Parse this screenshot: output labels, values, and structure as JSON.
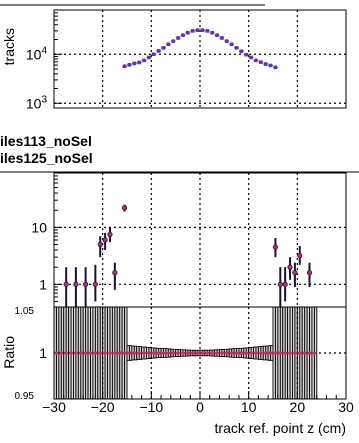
{
  "legend": {
    "entries": [
      "iles113_noSel",
      "iles125_noSel"
    ]
  },
  "chart_data": [
    {
      "type": "scatter",
      "panel": "top",
      "ylabel": "tracks",
      "yscale": "log",
      "ylim": [
        800,
        80000
      ],
      "xlim": [
        -30,
        30
      ],
      "y_ticks": [
        {
          "value": 1000,
          "label": "10",
          "exp": "3"
        },
        {
          "value": 10000,
          "label": "10",
          "exp": "4"
        }
      ],
      "grid": true,
      "series": [
        {
          "color": "#5a3aa8",
          "x": [
            -15.5,
            -14.5,
            -13.5,
            -12.5,
            -11.5,
            -10.5,
            -9.5,
            -8.5,
            -7.5,
            -6.5,
            -5.5,
            -4.5,
            -3.5,
            -2.5,
            -1.5,
            -0.5,
            0.5,
            1.5,
            2.5,
            3.5,
            4.5,
            5.5,
            6.5,
            7.5,
            8.5,
            9.5,
            10.5,
            11.5,
            12.5,
            13.5,
            14.5,
            15.5
          ],
          "y": [
            5700,
            6100,
            6500,
            6800,
            7500,
            8600,
            10000,
            11700,
            13500,
            16000,
            18500,
            21500,
            24500,
            27500,
            30000,
            31000,
            31000,
            30000,
            27500,
            24500,
            21500,
            18500,
            16000,
            13500,
            11500,
            9800,
            8600,
            7500,
            6900,
            6300,
            5900,
            5400
          ]
        }
      ]
    },
    {
      "type": "scatter",
      "panel": "middle",
      "yscale": "log",
      "ylim": [
        0.4,
        90
      ],
      "xlim": [
        -30,
        30
      ],
      "y_ticks": [
        {
          "value": 1,
          "label": "1"
        },
        {
          "value": 10,
          "label": "10"
        }
      ],
      "grid": true,
      "points": [
        {
          "x": -27.5,
          "y": 1.0,
          "err_lo": 0.6,
          "err_hi": 1.0
        },
        {
          "x": -25.5,
          "y": 1.0,
          "err_lo": 0.6,
          "err_hi": 1.0
        },
        {
          "x": -23.5,
          "y": 1.0,
          "err_lo": 0.6,
          "err_hi": 1.0
        },
        {
          "x": -21.5,
          "y": 1.0,
          "err_lo": 0.5,
          "err_hi": 1.2
        },
        {
          "x": -20.5,
          "y": 5.0,
          "err_lo": 2.0,
          "err_hi": 2.0
        },
        {
          "x": -19.5,
          "y": 6.0,
          "err_lo": 2.0,
          "err_hi": 2.0
        },
        {
          "x": -18.5,
          "y": 7.5,
          "err_lo": 2.0,
          "err_hi": 2.5
        },
        {
          "x": -17.5,
          "y": 1.6,
          "err_lo": 0.8,
          "err_hi": 0.8
        },
        {
          "x": -15.5,
          "y": 22.0,
          "err_lo": 3.0,
          "err_hi": 3.0
        },
        {
          "x": 15.5,
          "y": 4.5,
          "err_lo": 1.5,
          "err_hi": 2.0
        },
        {
          "x": 16.5,
          "y": 1.0,
          "err_lo": 0.6,
          "err_hi": 1.0
        },
        {
          "x": 17.5,
          "y": 1.0,
          "err_lo": 0.5,
          "err_hi": 1.0
        },
        {
          "x": 18.5,
          "y": 2.0,
          "err_lo": 0.8,
          "err_hi": 1.0
        },
        {
          "x": 19.5,
          "y": 1.6,
          "err_lo": 0.7,
          "err_hi": 0.8
        },
        {
          "x": 20.5,
          "y": 3.2,
          "err_lo": 1.0,
          "err_hi": 1.5
        },
        {
          "x": 22.5,
          "y": 1.6,
          "err_lo": 0.7,
          "err_hi": 0.8
        }
      ]
    },
    {
      "type": "scatter",
      "panel": "ratio",
      "ylabel": "Ratio",
      "xlabel": "track ref. point z (cm)",
      "ylim": [
        0.95,
        1.05
      ],
      "xlim": [
        -30,
        30
      ],
      "y_ticks": [
        {
          "value": 0.95,
          "label": "0.95"
        },
        {
          "value": 1.0,
          "label": "1"
        },
        {
          "value": 1.05,
          "label": "1.05"
        }
      ],
      "x_ticks": [
        {
          "value": -30,
          "label": "−30"
        },
        {
          "value": -20,
          "label": "−20"
        },
        {
          "value": -10,
          "label": "−10"
        },
        {
          "value": 0,
          "label": "0"
        },
        {
          "value": 10,
          "label": "10"
        },
        {
          "value": 20,
          "label": "20"
        },
        {
          "value": 30,
          "label": "30"
        }
      ],
      "grid": true,
      "value": 1.0,
      "bins_x": [
        -29.5,
        -28.5,
        -27.5,
        -26.5,
        -25.5,
        -24.5,
        -23.5,
        -22.5,
        -21.5,
        -20.5,
        -19.5,
        -18.5,
        -17.5,
        -16.5,
        -15.5,
        -14.5,
        -13.5,
        -12.5,
        -11.5,
        -10.5,
        -9.5,
        -8.5,
        -7.5,
        -6.5,
        -5.5,
        -4.5,
        -3.5,
        -2.5,
        -1.5,
        -0.5,
        0.5,
        1.5,
        2.5,
        3.5,
        4.5,
        5.5,
        6.5,
        7.5,
        8.5,
        9.5,
        10.5,
        11.5,
        12.5,
        13.5,
        14.5,
        15.5,
        16.5,
        17.5,
        18.5,
        19.5,
        20.5,
        21.5,
        22.5,
        23.5
      ],
      "bins_err": [
        0.06,
        0.06,
        0.06,
        0.06,
        0.06,
        0.06,
        0.06,
        0.06,
        0.06,
        0.06,
        0.06,
        0.06,
        0.06,
        0.06,
        0.06,
        0.008,
        0.0075,
        0.007,
        0.0065,
        0.006,
        0.0055,
        0.005,
        0.0048,
        0.0045,
        0.004,
        0.0038,
        0.0035,
        0.0032,
        0.003,
        0.003,
        0.003,
        0.003,
        0.0032,
        0.0035,
        0.0038,
        0.004,
        0.0045,
        0.0048,
        0.005,
        0.0055,
        0.006,
        0.0065,
        0.007,
        0.0075,
        0.008,
        0.06,
        0.06,
        0.06,
        0.06,
        0.06,
        0.06,
        0.06,
        0.06,
        0.06
      ]
    }
  ]
}
